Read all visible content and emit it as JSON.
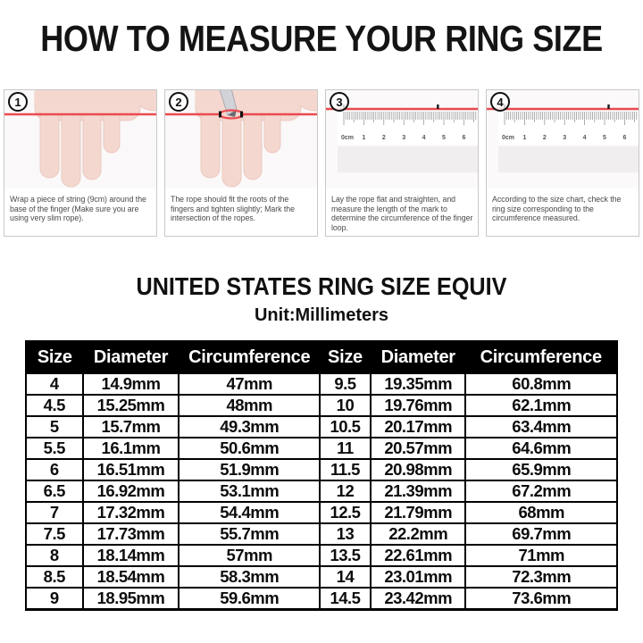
{
  "page": {
    "title": "HOW TO MEASURE YOUR RING SIZE"
  },
  "steps": [
    {
      "number": "1",
      "icon": "hand-string-photo",
      "caption": "Wrap a piece of string (9cm) around the base of the finger (Make sure you are using very slim rope)."
    },
    {
      "number": "2",
      "icon": "hand-marked-string-photo",
      "caption": "The rope should fit the roots of the fingers and tighten slightly; Mark the intersection of the ropes."
    },
    {
      "number": "3",
      "icon": "ruler-photo",
      "caption": "Lay the rope flat and straighten, and measure the length of the mark to determine the circumference of the finger loop."
    },
    {
      "number": "4",
      "icon": "ruler-photo",
      "caption": "According to the size chart, check the ring size corresponding to the circumference measured."
    }
  ],
  "ruler": {
    "labels": [
      "0cm",
      "1",
      "2",
      "3",
      "4",
      "5",
      "6"
    ]
  },
  "size_chart": {
    "title": "UNITED STATES RING SIZE EQUIV",
    "subtitle": "Unit:Millimeters",
    "columns": [
      "Size",
      "Diameter",
      "Circumference",
      "Size",
      "Diameter",
      "Circumference"
    ],
    "rows": [
      [
        "4",
        "14.9mm",
        "47mm",
        "9.5",
        "19.35mm",
        "60.8mm"
      ],
      [
        "4.5",
        "15.25mm",
        "48mm",
        "10",
        "19.76mm",
        "62.1mm"
      ],
      [
        "5",
        "15.7mm",
        "49.3mm",
        "10.5",
        "20.17mm",
        "63.4mm"
      ],
      [
        "5.5",
        "16.1mm",
        "50.6mm",
        "11",
        "20.57mm",
        "64.6mm"
      ],
      [
        "6",
        "16.51mm",
        "51.9mm",
        "11.5",
        "20.98mm",
        "65.9mm"
      ],
      [
        "6.5",
        "16.92mm",
        "53.1mm",
        "12",
        "21.39mm",
        "67.2mm"
      ],
      [
        "7",
        "17.32mm",
        "54.4mm",
        "12.5",
        "21.79mm",
        "68mm"
      ],
      [
        "7.5",
        "17.73mm",
        "55.7mm",
        "13",
        "22.2mm",
        "69.7mm"
      ],
      [
        "8",
        "18.14mm",
        "57mm",
        "13.5",
        "22.61mm",
        "71mm"
      ],
      [
        "8.5",
        "18.54mm",
        "58.3mm",
        "14",
        "23.01mm",
        "72.3mm"
      ],
      [
        "9",
        "18.95mm",
        "59.6mm",
        "14.5",
        "23.42mm",
        "73.6mm"
      ]
    ]
  },
  "colors": {
    "string_red": "#ea4a50",
    "skin": "#f4d8d0",
    "skin_edge": "#e8c2b8",
    "panel_border": "#c8c8c8",
    "header_bg": "#000000",
    "header_text": "#ffffff",
    "caption_text": "#4a4a4a",
    "tick_gray": "#8b8b8b"
  }
}
